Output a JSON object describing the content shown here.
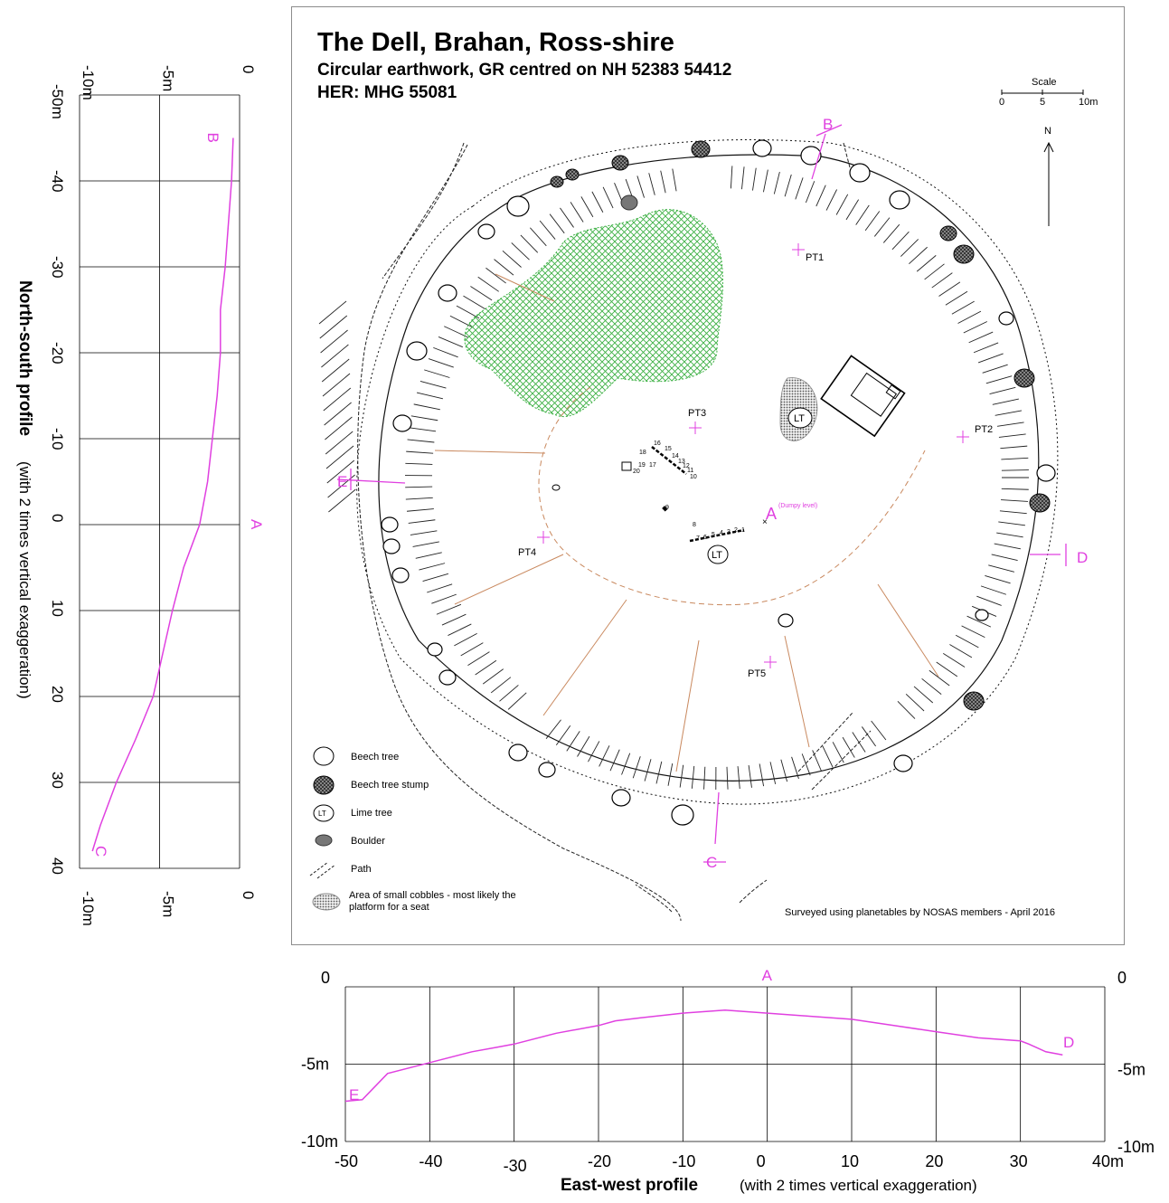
{
  "map": {
    "title": "The Dell, Brahan, Ross-shire",
    "subtitle": "Circular earthwork, GR centred on NH 52383 54412",
    "her": "HER: MHG 55081",
    "scale": {
      "label": "Scale",
      "ticks": [
        "0",
        "5",
        "10m"
      ]
    },
    "north_label": "N",
    "survey_points": [
      "PT1",
      "PT2",
      "PT3",
      "PT4",
      "PT5"
    ],
    "profile_markers": [
      "A",
      "B",
      "C",
      "D",
      "E"
    ],
    "dumpy_level": "(Dumpy level)",
    "lime_tree_label": "LT",
    "trench_numbers": [
      "1",
      "2",
      "3",
      "4",
      "5",
      "6",
      "7",
      "8",
      "9",
      "10",
      "11",
      "12",
      "13",
      "14",
      "15",
      "16",
      "17",
      "18",
      "19",
      "20"
    ],
    "legend": [
      {
        "symbol": "beech-tree",
        "label": "Beech tree"
      },
      {
        "symbol": "beech-tree-stump",
        "label": "Beech tree stump"
      },
      {
        "symbol": "lime-tree",
        "label": "Lime tree"
      },
      {
        "symbol": "boulder",
        "label": "Boulder"
      },
      {
        "symbol": "path",
        "label": "Path"
      },
      {
        "symbol": "cobbles",
        "label": "Area of small cobbles - most likely the platform for a seat"
      }
    ],
    "survey_note": "Surveyed using planetables by NOSAS members -  April 2016",
    "colors": {
      "profile": "#e040e0",
      "hatch_area": "#3cb043",
      "ditch_lines": "#c9895f"
    }
  },
  "chart_data": [
    {
      "type": "line",
      "title": "North-south profile",
      "title_suffix": "(with 2 times vertical exaggeration)",
      "orientation": "vertical-axis-distance",
      "x_axis_ticks": [
        "-50m",
        "-40",
        "-30",
        "-20",
        "-10",
        "0",
        "10",
        "20",
        "30",
        "40"
      ],
      "y_axis_ticks_top": [
        "-10m",
        "-5m",
        "0"
      ],
      "y_axis_ticks_bottom": [
        "-10m",
        "-5m",
        "0"
      ],
      "distance_range": [
        -50,
        40
      ],
      "height_range": [
        -10,
        0
      ],
      "start_label": "B",
      "mid_label": "A",
      "end_label": "C",
      "series": [
        {
          "points": [
            [
              -45,
              -0.4
            ],
            [
              -40,
              -0.5
            ],
            [
              -30,
              -0.9
            ],
            [
              -25,
              -1.2
            ],
            [
              -20,
              -1.2
            ],
            [
              -15,
              -1.4
            ],
            [
              -10,
              -1.7
            ],
            [
              -5,
              -2
            ],
            [
              0,
              -2.5
            ],
            [
              5,
              -3.5
            ],
            [
              10,
              -4.2
            ],
            [
              15,
              -4.8
            ],
            [
              20,
              -5.4
            ],
            [
              25,
              -6.5
            ],
            [
              30,
              -7.7
            ],
            [
              35,
              -8.7
            ],
            [
              38,
              -9.2
            ]
          ]
        }
      ]
    },
    {
      "type": "line",
      "title": "East-west profile",
      "title_suffix": "(with 2 times vertical exaggeration)",
      "x_axis_ticks": [
        "-50",
        "-40",
        "-30",
        "-20",
        "-10",
        "0",
        "10",
        "20",
        "30",
        "40m"
      ],
      "y_axis_ticks_left": [
        "0",
        "-5m",
        "-10m"
      ],
      "y_axis_ticks_right": [
        "0",
        "-5m",
        "-10m"
      ],
      "xlim": [
        -50,
        40
      ],
      "ylim": [
        -10,
        0
      ],
      "start_label": "E",
      "mid_label": "A",
      "end_label": "D",
      "series": [
        {
          "points": [
            [
              -50,
              -7.4
            ],
            [
              -48,
              -7.3
            ],
            [
              -45,
              -5.6
            ],
            [
              -40,
              -4.9
            ],
            [
              -35,
              -4.2
            ],
            [
              -32,
              -3.9
            ],
            [
              -30,
              -3.7
            ],
            [
              -25,
              -3
            ],
            [
              -20,
              -2.5
            ],
            [
              -18,
              -2.2
            ],
            [
              -15,
              -2
            ],
            [
              -10,
              -1.7
            ],
            [
              -5,
              -1.5
            ],
            [
              0,
              -1.7
            ],
            [
              5,
              -1.9
            ],
            [
              10,
              -2.1
            ],
            [
              15,
              -2.5
            ],
            [
              20,
              -2.9
            ],
            [
              25,
              -3.3
            ],
            [
              30,
              -3.5
            ],
            [
              31,
              -3.7
            ],
            [
              33,
              -4.2
            ],
            [
              35,
              -4.4
            ]
          ]
        }
      ]
    }
  ]
}
